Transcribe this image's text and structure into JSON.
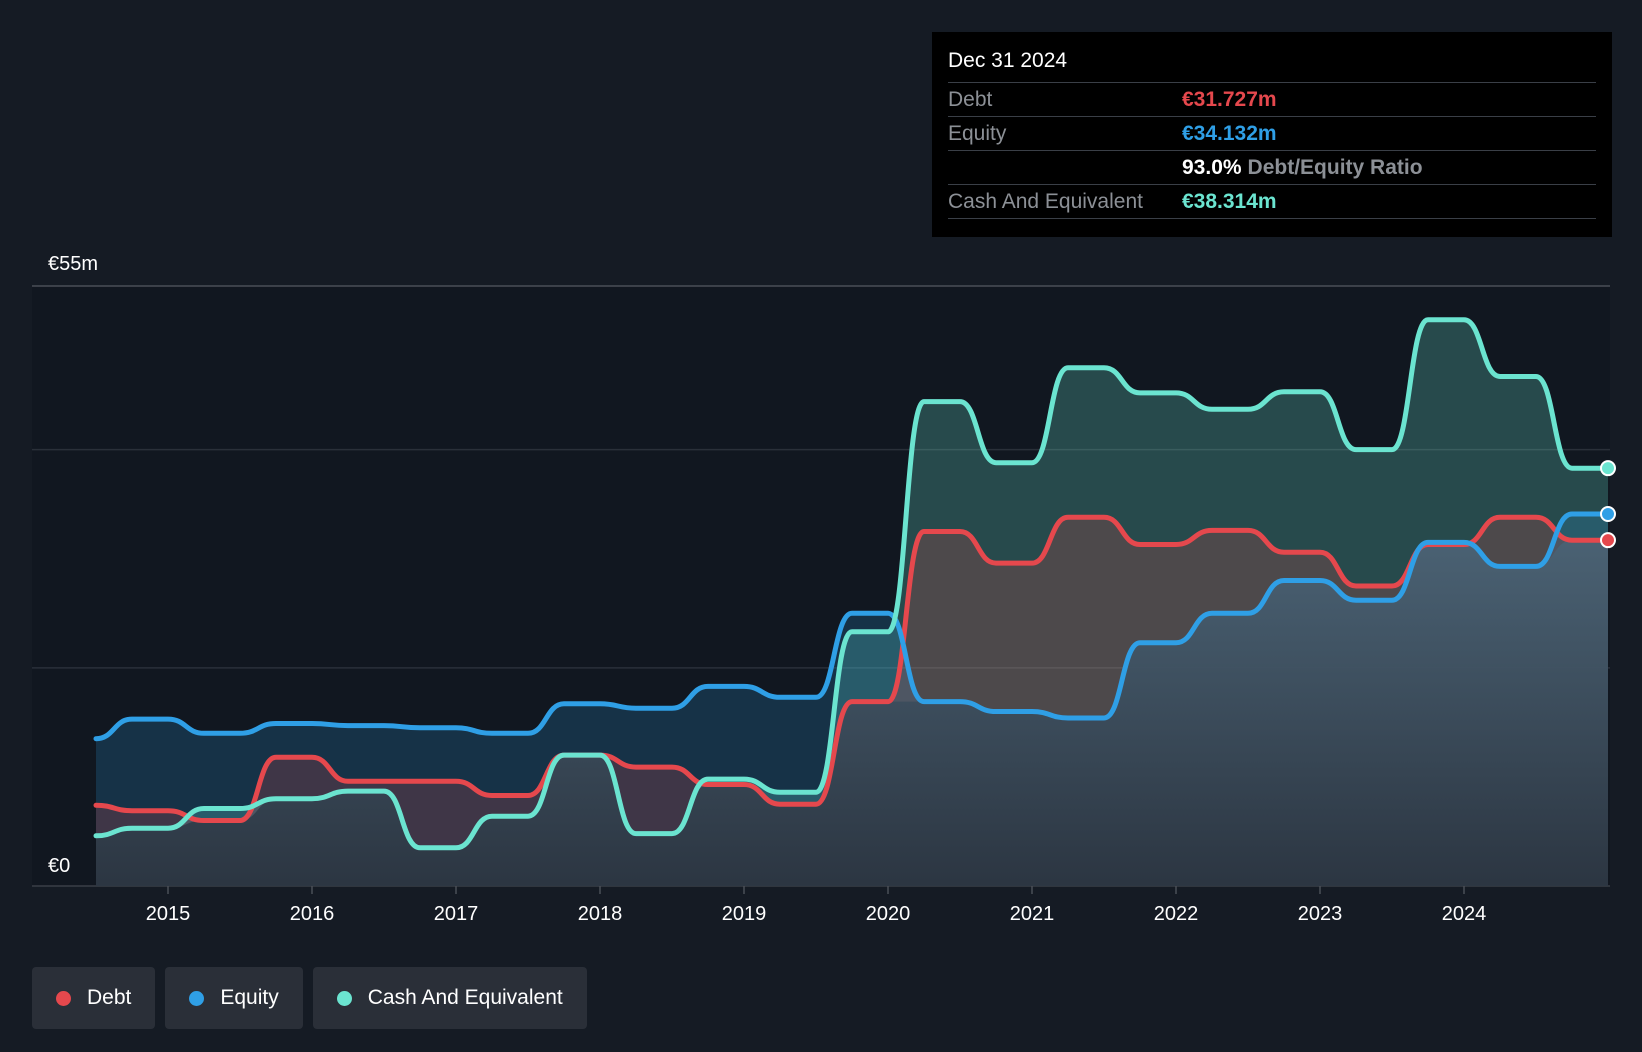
{
  "tooltip": {
    "date": "Dec 31 2024",
    "rows": [
      {
        "label": "Debt",
        "value": "€31.727m",
        "color": "#e5484d"
      },
      {
        "label": "Equity",
        "value": "€34.132m",
        "color": "#2f9fe6"
      },
      {
        "ratio_value": "93.0%",
        "ratio_label": "Debt/Equity Ratio"
      },
      {
        "label": "Cash And Equivalent",
        "value": "€38.314m",
        "color": "#6be4d0"
      }
    ]
  },
  "legend": [
    {
      "label": "Debt",
      "color": "#e5484d"
    },
    {
      "label": "Equity",
      "color": "#2f9fe6"
    },
    {
      "label": "Cash And Equivalent",
      "color": "#6be4d0"
    }
  ],
  "chart_data": {
    "type": "area",
    "x_unit": "year",
    "ylim": [
      0,
      55
    ],
    "y_tick_labels": [
      {
        "value": 55,
        "label": "€55m"
      },
      {
        "value": 0,
        "label": "€0"
      }
    ],
    "gridlines": [
      0,
      20,
      40,
      55
    ],
    "x_ticks": [
      2015,
      2016,
      2017,
      2018,
      2019,
      2020,
      2021,
      2022,
      2023,
      2024
    ],
    "x_range": [
      2014.5,
      2025.0
    ],
    "series": [
      {
        "name": "Debt",
        "color": "#e5484d",
        "points": [
          [
            2014.5,
            7.4
          ],
          [
            2014.75,
            6.9
          ],
          [
            2015.0,
            6.9
          ],
          [
            2015.25,
            6.0
          ],
          [
            2015.5,
            6.0
          ],
          [
            2015.75,
            11.8
          ],
          [
            2016.0,
            11.8
          ],
          [
            2016.25,
            9.6
          ],
          [
            2016.5,
            9.6
          ],
          [
            2016.75,
            9.6
          ],
          [
            2017.0,
            9.6
          ],
          [
            2017.25,
            8.3
          ],
          [
            2017.5,
            8.3
          ],
          [
            2017.75,
            12.0
          ],
          [
            2018.0,
            12.0
          ],
          [
            2018.25,
            10.9
          ],
          [
            2018.5,
            10.9
          ],
          [
            2018.75,
            9.3
          ],
          [
            2019.0,
            9.3
          ],
          [
            2019.25,
            7.5
          ],
          [
            2019.5,
            7.5
          ],
          [
            2019.75,
            16.9
          ],
          [
            2020.0,
            16.9
          ],
          [
            2020.25,
            32.5
          ],
          [
            2020.5,
            32.5
          ],
          [
            2020.75,
            29.6
          ],
          [
            2021.0,
            29.6
          ],
          [
            2021.25,
            33.8
          ],
          [
            2021.5,
            33.8
          ],
          [
            2021.75,
            31.3
          ],
          [
            2022.0,
            31.3
          ],
          [
            2022.25,
            32.6
          ],
          [
            2022.5,
            32.6
          ],
          [
            2022.75,
            30.6
          ],
          [
            2023.0,
            30.6
          ],
          [
            2023.25,
            27.5
          ],
          [
            2023.5,
            27.5
          ],
          [
            2023.75,
            31.3
          ],
          [
            2024.0,
            31.3
          ],
          [
            2024.25,
            33.8
          ],
          [
            2024.5,
            33.8
          ],
          [
            2024.75,
            31.7
          ],
          [
            2025.0,
            31.7
          ]
        ]
      },
      {
        "name": "Equity",
        "color": "#2f9fe6",
        "points": [
          [
            2014.5,
            13.5
          ],
          [
            2014.75,
            15.3
          ],
          [
            2015.0,
            15.3
          ],
          [
            2015.25,
            14.0
          ],
          [
            2015.5,
            14.0
          ],
          [
            2015.75,
            14.9
          ],
          [
            2016.0,
            14.9
          ],
          [
            2016.25,
            14.7
          ],
          [
            2016.5,
            14.7
          ],
          [
            2016.75,
            14.5
          ],
          [
            2017.0,
            14.5
          ],
          [
            2017.25,
            14.0
          ],
          [
            2017.5,
            14.0
          ],
          [
            2017.75,
            16.7
          ],
          [
            2018.0,
            16.7
          ],
          [
            2018.25,
            16.3
          ],
          [
            2018.5,
            16.3
          ],
          [
            2018.75,
            18.3
          ],
          [
            2019.0,
            18.3
          ],
          [
            2019.25,
            17.3
          ],
          [
            2019.5,
            17.3
          ],
          [
            2019.75,
            25.0
          ],
          [
            2020.0,
            25.0
          ],
          [
            2020.25,
            16.9
          ],
          [
            2020.5,
            16.9
          ],
          [
            2020.75,
            16.0
          ],
          [
            2021.0,
            16.0
          ],
          [
            2021.25,
            15.4
          ],
          [
            2021.5,
            15.4
          ],
          [
            2021.75,
            22.3
          ],
          [
            2022.0,
            22.3
          ],
          [
            2022.25,
            25.0
          ],
          [
            2022.5,
            25.0
          ],
          [
            2022.75,
            28.0
          ],
          [
            2023.0,
            28.0
          ],
          [
            2023.25,
            26.2
          ],
          [
            2023.5,
            26.2
          ],
          [
            2023.75,
            31.5
          ],
          [
            2024.0,
            31.5
          ],
          [
            2024.25,
            29.3
          ],
          [
            2024.5,
            29.3
          ],
          [
            2024.75,
            34.1
          ],
          [
            2025.0,
            34.1
          ]
        ]
      },
      {
        "name": "Cash And Equivalent",
        "color": "#6be4d0",
        "points": [
          [
            2014.5,
            4.6
          ],
          [
            2014.75,
            5.3
          ],
          [
            2015.0,
            5.3
          ],
          [
            2015.25,
            7.1
          ],
          [
            2015.5,
            7.1
          ],
          [
            2015.75,
            8.0
          ],
          [
            2016.0,
            8.0
          ],
          [
            2016.25,
            8.7
          ],
          [
            2016.5,
            8.7
          ],
          [
            2016.75,
            3.5
          ],
          [
            2017.0,
            3.5
          ],
          [
            2017.25,
            6.4
          ],
          [
            2017.5,
            6.4
          ],
          [
            2017.75,
            12.0
          ],
          [
            2018.0,
            12.0
          ],
          [
            2018.25,
            4.8
          ],
          [
            2018.5,
            4.8
          ],
          [
            2018.75,
            9.8
          ],
          [
            2019.0,
            9.8
          ],
          [
            2019.25,
            8.6
          ],
          [
            2019.5,
            8.6
          ],
          [
            2019.75,
            23.3
          ],
          [
            2020.0,
            23.3
          ],
          [
            2020.25,
            44.4
          ],
          [
            2020.5,
            44.4
          ],
          [
            2020.75,
            38.8
          ],
          [
            2021.0,
            38.8
          ],
          [
            2021.25,
            47.5
          ],
          [
            2021.5,
            47.5
          ],
          [
            2021.75,
            45.2
          ],
          [
            2022.0,
            45.2
          ],
          [
            2022.25,
            43.7
          ],
          [
            2022.5,
            43.7
          ],
          [
            2022.75,
            45.3
          ],
          [
            2023.0,
            45.3
          ],
          [
            2023.25,
            40.0
          ],
          [
            2023.5,
            40.0
          ],
          [
            2023.75,
            51.9
          ],
          [
            2024.0,
            51.9
          ],
          [
            2024.25,
            46.7
          ],
          [
            2024.5,
            46.7
          ],
          [
            2024.75,
            38.3
          ],
          [
            2025.0,
            38.3
          ]
        ]
      }
    ]
  }
}
